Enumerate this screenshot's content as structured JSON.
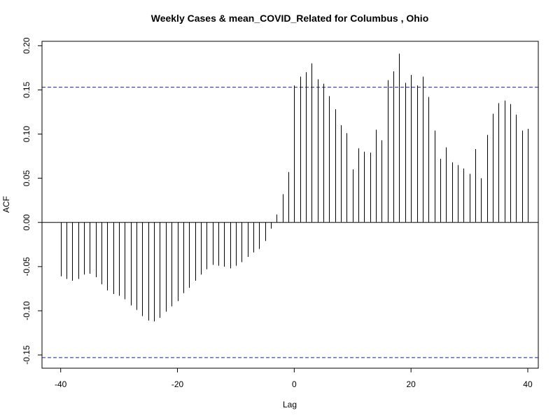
{
  "chart_data": {
    "type": "bar",
    "title": "Weekly Cases & mean_COVID_Related for Columbus , Ohio",
    "xlabel": "Lag",
    "ylabel": "ACF",
    "xlim": [
      -43.2,
      41.8
    ],
    "ylim": [
      -0.165,
      0.205
    ],
    "x_ticks": [
      -40,
      -20,
      0,
      20,
      40
    ],
    "x_tick_labels": [
      "-40",
      "-20",
      "0",
      "20",
      "40"
    ],
    "y_ticks": [
      -0.15,
      -0.1,
      -0.05,
      0.0,
      0.05,
      0.1,
      0.15,
      0.2
    ],
    "y_tick_labels": [
      "-0.15",
      "-0.10",
      "-0.05",
      "0.00",
      "0.05",
      "0.10",
      "0.15",
      "0.20"
    ],
    "confidence_bound": 0.153,
    "colors": {
      "bars": "#000000",
      "confidence": "#1f1fa8"
    },
    "grid": false,
    "x": [
      -40,
      -39,
      -38,
      -37,
      -36,
      -35,
      -34,
      -33,
      -32,
      -31,
      -30,
      -29,
      -28,
      -27,
      -26,
      -25,
      -24,
      -23,
      -22,
      -21,
      -20,
      -19,
      -18,
      -17,
      -16,
      -15,
      -14,
      -13,
      -12,
      -11,
      -10,
      -9,
      -8,
      -7,
      -6,
      -5,
      -4,
      -3,
      -2,
      -1,
      0,
      1,
      2,
      3,
      4,
      5,
      6,
      7,
      8,
      9,
      10,
      11,
      12,
      13,
      14,
      15,
      16,
      17,
      18,
      19,
      20,
      21,
      22,
      23,
      24,
      25,
      26,
      27,
      28,
      29,
      30,
      31,
      32,
      33,
      34,
      35,
      36,
      37,
      38,
      39,
      40
    ],
    "values": [
      -0.061,
      -0.064,
      -0.066,
      -0.064,
      -0.059,
      -0.058,
      -0.062,
      -0.07,
      -0.077,
      -0.081,
      -0.083,
      -0.087,
      -0.094,
      -0.099,
      -0.106,
      -0.111,
      -0.112,
      -0.108,
      -0.101,
      -0.095,
      -0.089,
      -0.08,
      -0.074,
      -0.066,
      -0.059,
      -0.053,
      -0.048,
      -0.049,
      -0.05,
      -0.052,
      -0.049,
      -0.045,
      -0.039,
      -0.034,
      -0.03,
      -0.021,
      -0.007,
      0.009,
      0.032,
      0.057,
      0.155,
      0.165,
      0.17,
      0.18,
      0.162,
      0.157,
      0.143,
      0.128,
      0.11,
      0.101,
      0.06,
      0.084,
      0.08,
      0.079,
      0.105,
      0.093,
      0.161,
      0.171,
      0.191,
      0.158,
      0.167,
      0.155,
      0.165,
      0.142,
      0.104,
      0.072,
      0.085,
      0.068,
      0.065,
      0.061,
      0.055,
      0.083,
      0.05,
      0.099,
      0.123,
      0.135,
      0.138,
      0.134,
      0.122,
      0.104,
      0.106
    ]
  }
}
